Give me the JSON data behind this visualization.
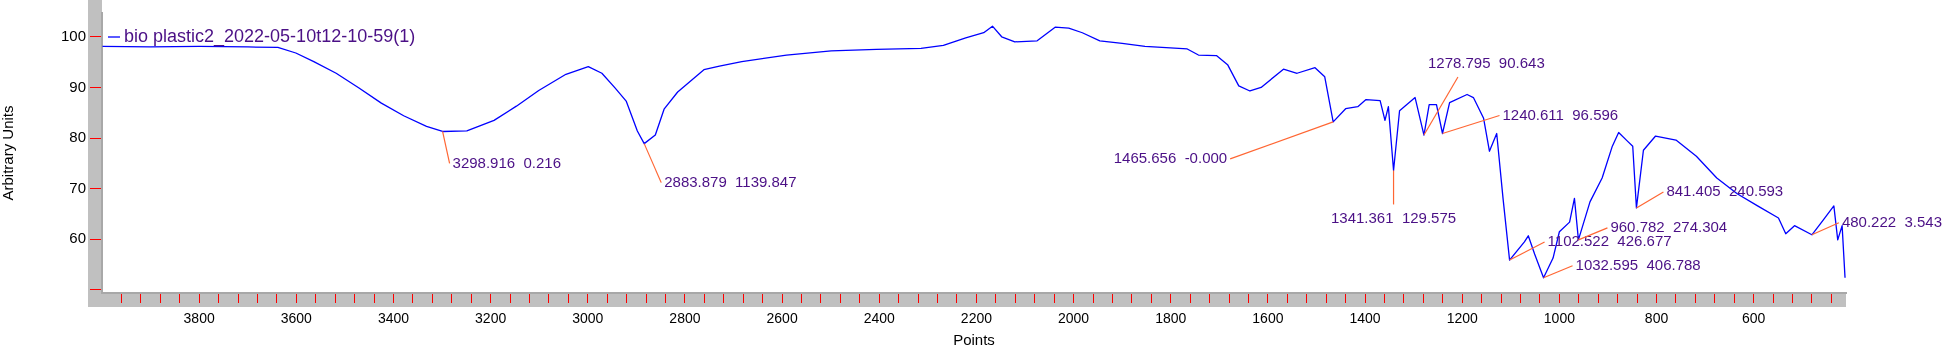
{
  "chart_data": {
    "type": "line",
    "xlabel": "Points",
    "ylabel": "Arbitrary Units",
    "xlim": [
      4000,
      410
    ],
    "ylim": [
      49.4,
      104.7
    ],
    "yticks": [
      {
        "value": 50,
        "label": null
      },
      60,
      70,
      80,
      90,
      100
    ],
    "xticks": [
      {
        "value": 3960,
        "label": null
      },
      {
        "value": 3920,
        "label": null
      },
      {
        "value": 3880,
        "label": null
      },
      {
        "value": 3840,
        "label": null
      },
      3800,
      {
        "value": 3760,
        "label": null
      },
      {
        "value": 3720,
        "label": null
      },
      {
        "value": 3680,
        "label": null
      },
      {
        "value": 3640,
        "label": null
      },
      3600,
      {
        "value": 3560,
        "label": null
      },
      {
        "value": 3520,
        "label": null
      },
      {
        "value": 3480,
        "label": null
      },
      {
        "value": 3440,
        "label": null
      },
      3400,
      {
        "value": 3360,
        "label": null
      },
      {
        "value": 3320,
        "label": null
      },
      {
        "value": 3280,
        "label": null
      },
      {
        "value": 3240,
        "label": null
      },
      3200,
      {
        "value": 3160,
        "label": null
      },
      {
        "value": 3120,
        "label": null
      },
      {
        "value": 3080,
        "label": null
      },
      {
        "value": 3040,
        "label": null
      },
      3000,
      {
        "value": 2960,
        "label": null
      },
      {
        "value": 2920,
        "label": null
      },
      {
        "value": 2880,
        "label": null
      },
      {
        "value": 2840,
        "label": null
      },
      2800,
      {
        "value": 2760,
        "label": null
      },
      {
        "value": 2720,
        "label": null
      },
      {
        "value": 2680,
        "label": null
      },
      {
        "value": 2640,
        "label": null
      },
      2600,
      {
        "value": 2560,
        "label": null
      },
      {
        "value": 2520,
        "label": null
      },
      {
        "value": 2480,
        "label": null
      },
      {
        "value": 2440,
        "label": null
      },
      2400,
      {
        "value": 2360,
        "label": null
      },
      {
        "value": 2320,
        "label": null
      },
      {
        "value": 2280,
        "label": null
      },
      {
        "value": 2240,
        "label": null
      },
      2200,
      {
        "value": 2160,
        "label": null
      },
      {
        "value": 2120,
        "label": null
      },
      {
        "value": 2080,
        "label": null
      },
      {
        "value": 2040,
        "label": null
      },
      2000,
      {
        "value": 1960,
        "label": null
      },
      {
        "value": 1920,
        "label": null
      },
      {
        "value": 1880,
        "label": null
      },
      {
        "value": 1840,
        "label": null
      },
      1800,
      {
        "value": 1760,
        "label": null
      },
      {
        "value": 1720,
        "label": null
      },
      {
        "value": 1680,
        "label": null
      },
      {
        "value": 1640,
        "label": null
      },
      1600,
      {
        "value": 1560,
        "label": null
      },
      {
        "value": 1520,
        "label": null
      },
      {
        "value": 1480,
        "label": null
      },
      {
        "value": 1440,
        "label": null
      },
      1400,
      {
        "value": 1360,
        "label": null
      },
      {
        "value": 1320,
        "label": null
      },
      {
        "value": 1280,
        "label": null
      },
      {
        "value": 1240,
        "label": null
      },
      1200,
      {
        "value": 1160,
        "label": null
      },
      {
        "value": 1120,
        "label": null
      },
      {
        "value": 1080,
        "label": null
      },
      {
        "value": 1040,
        "label": null
      },
      1000,
      {
        "value": 960,
        "label": null
      },
      {
        "value": 920,
        "label": null
      },
      {
        "value": 880,
        "label": null
      },
      {
        "value": 840,
        "label": null
      },
      800,
      {
        "value": 760,
        "label": null
      },
      {
        "value": 720,
        "label": null
      },
      {
        "value": 680,
        "label": null
      },
      {
        "value": 640,
        "label": null
      },
      600,
      {
        "value": 560,
        "label": null
      },
      {
        "value": 520,
        "label": null
      },
      {
        "value": 480,
        "label": null
      },
      {
        "value": 440,
        "label": null
      }
    ],
    "grid": false,
    "legend": "top left",
    "marker": "none",
    "line_style": "solid",
    "series": [
      {
        "name": "bio plastic2_2022-05-10t12-10-59(1)",
        "color": "#0000ff",
        "x": [
          3999,
          3900,
          3800,
          3700,
          3638,
          3601,
          3564,
          3518,
          3471,
          3425,
          3379,
          3332,
          3298.916,
          3249,
          3193,
          3147,
          3101,
          3045,
          2999,
          2971,
          2944,
          2921,
          2898,
          2883.879,
          2861,
          2843,
          2815,
          2761,
          2729,
          2683,
          2591,
          2499,
          2406,
          2314,
          2268,
          2222,
          2185,
          2167,
          2148,
          2121,
          2075,
          2038,
          2010,
          1982,
          1946,
          1900,
          1853,
          1766,
          1743,
          1706,
          1683,
          1660,
          1637,
          1614,
          1568,
          1540,
          1503,
          1483,
          1465.656,
          1440,
          1415,
          1398,
          1369,
          1359,
          1352,
          1341.361,
          1329,
          1297,
          1278.795,
          1268,
          1253,
          1240.611,
          1226,
          1190,
          1177,
          1156,
          1144,
          1129,
          1116,
          1102.522,
          1072,
          1064,
          1051,
          1032.595,
          1013,
          1000,
          979,
          969,
          960.782,
          937,
          912,
          891,
          878,
          861,
          849,
          841.405,
          827,
          802,
          760,
          718,
          676,
          634,
          592,
          549,
          534,
          516,
          480.222,
          457,
          435,
          427,
          418,
          412
        ],
        "values": [
          98.1,
          98.0,
          98.1,
          98.0,
          97.9,
          96.8,
          95.1,
          92.8,
          89.9,
          86.9,
          84.4,
          82.3,
          81.3,
          81.4,
          83.5,
          86.3,
          89.4,
          92.6,
          94.1,
          92.8,
          89.9,
          87.3,
          81.4,
          78.9,
          80.6,
          85.7,
          89.1,
          93.5,
          94.2,
          95.1,
          96.4,
          97.2,
          97.5,
          97.7,
          98.3,
          99.8,
          100.8,
          102.1,
          100.0,
          99.0,
          99.2,
          101.9,
          101.7,
          100.8,
          99.2,
          98.7,
          98.1,
          97.6,
          96.4,
          96.3,
          94.5,
          90.3,
          89.3,
          90.0,
          93.6,
          92.8,
          93.9,
          92.1,
          83.2,
          85.8,
          86.2,
          87.6,
          87.4,
          83.5,
          86.2,
          73.6,
          85.4,
          88.0,
          80.6,
          86.6,
          86.6,
          80.9,
          87.0,
          88.6,
          88.0,
          83.9,
          77.4,
          80.9,
          68.1,
          55.9,
          59.5,
          60.7,
          57.1,
          52.4,
          56.3,
          61.5,
          63.4,
          68.1,
          59.9,
          67.4,
          72.1,
          78.4,
          81.1,
          79.5,
          78.4,
          66.2,
          77.6,
          80.4,
          79.6,
          76.4,
          72.1,
          69.0,
          66.6,
          64.2,
          61.1,
          62.7,
          60.9,
          63.8,
          66.6,
          59.9,
          62.7,
          52.4
        ]
      }
    ],
    "annotations": [
      {
        "text": "3298.916  0.216",
        "x": 3298.916,
        "y": 81.3
      },
      {
        "text": "2883.879  1139.847",
        "x": 2883.879,
        "y": 78.9
      },
      {
        "text": "1465.656  -0.000",
        "x": 1465.656,
        "y": 83.2
      },
      {
        "text": "1341.361  129.575",
        "x": 1341.361,
        "y": 73.6
      },
      {
        "text": "1278.795  90.643",
        "x": 1278.795,
        "y": 80.6
      },
      {
        "text": "1240.611  96.596",
        "x": 1240.611,
        "y": 80.9
      },
      {
        "text": "1102.522  426.677",
        "x": 1102.522,
        "y": 55.9
      },
      {
        "text": "1032.595  406.788",
        "x": 1032.595,
        "y": 52.4
      },
      {
        "text": "960.782  274.304",
        "x": 960.782,
        "y": 59.9
      },
      {
        "text": "841.405  240.593",
        "x": 841.405,
        "y": 66.2
      },
      {
        "text": "480.222  3.543",
        "x": 480.222,
        "y": 60.9
      }
    ]
  }
}
